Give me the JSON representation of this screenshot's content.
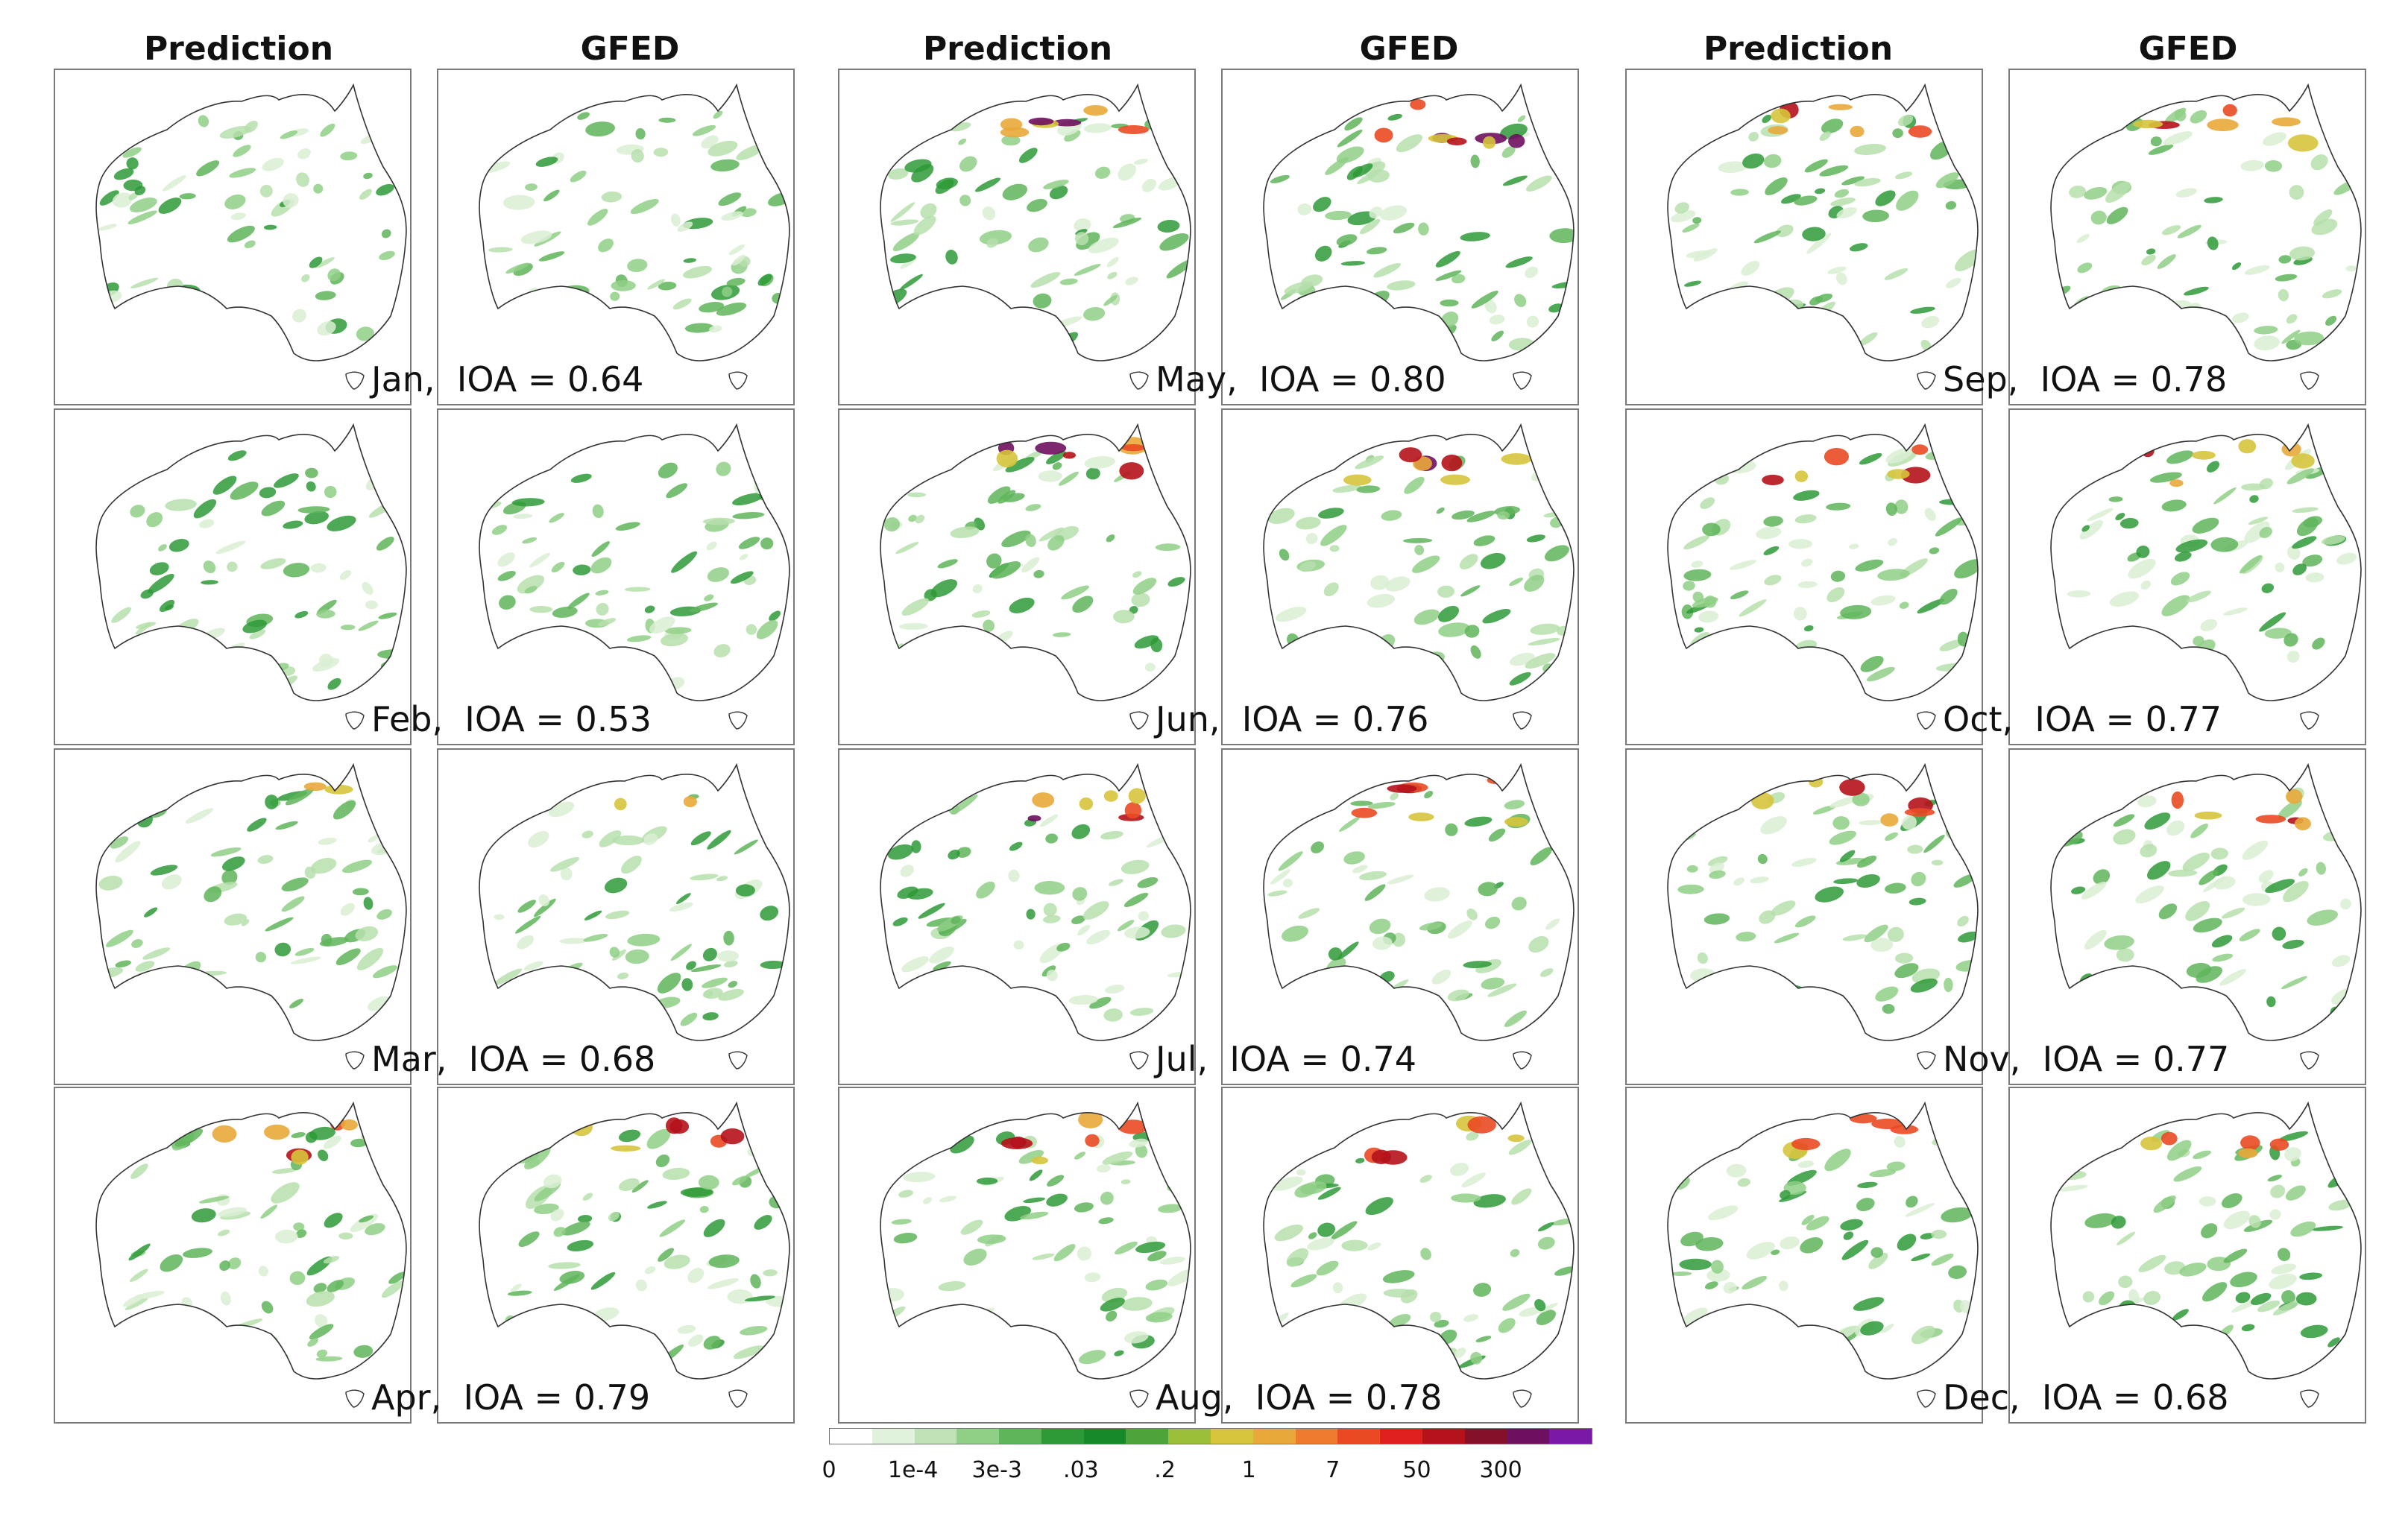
{
  "headers": {
    "prediction": "Prediction",
    "gfed": "GFED"
  },
  "months": [
    {
      "month": "Jan",
      "ioa_label": "IOA = 0.64",
      "ioa": 0.64
    },
    {
      "month": "Feb",
      "ioa_label": "IOA = 0.53",
      "ioa": 0.53
    },
    {
      "month": "Mar",
      "ioa_label": "IOA = 0.68",
      "ioa": 0.68
    },
    {
      "month": "Apr",
      "ioa_label": "IOA = 0.79",
      "ioa": 0.79
    },
    {
      "month": "May",
      "ioa_label": "IOA = 0.80",
      "ioa": 0.8
    },
    {
      "month": "Jun",
      "ioa_label": "IOA = 0.76",
      "ioa": 0.76
    },
    {
      "month": "Jul",
      "ioa_label": "IOA = 0.74",
      "ioa": 0.74
    },
    {
      "month": "Aug",
      "ioa_label": "IOA = 0.78",
      "ioa": 0.78
    },
    {
      "month": "Sep",
      "ioa_label": "IOA = 0.78",
      "ioa": 0.78
    },
    {
      "month": "Oct",
      "ioa_label": "IOA = 0.77",
      "ioa": 0.77
    },
    {
      "month": "Nov",
      "ioa_label": "IOA = 0.77",
      "ioa": 0.77
    },
    {
      "month": "Dec",
      "ioa_label": "IOA = 0.68",
      "ioa": 0.68
    }
  ],
  "colorbar": {
    "labels": [
      "0",
      "1e-4",
      "3e-3",
      ".03",
      ".2",
      "1",
      "7",
      "50",
      "300"
    ],
    "colors": [
      "#ffffff",
      "#e1f2dc",
      "#bfe3b6",
      "#8fcf86",
      "#5fb55a",
      "#2e9a37",
      "#168a2b",
      "#4ea33a",
      "#9cbf3a",
      "#d6c43c",
      "#e8a83a",
      "#ee7c2c",
      "#ea4a23",
      "#e01f1f",
      "#b5121b",
      "#85102a",
      "#6e0f5f",
      "#7a18a8"
    ]
  }
}
